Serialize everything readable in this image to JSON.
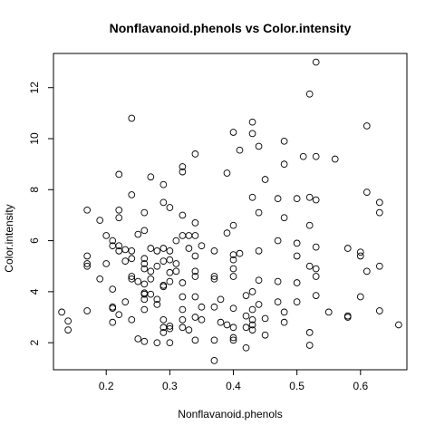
{
  "chart_data": {
    "type": "scatter",
    "title": "Nonflavanoid.phenols vs Color.intensity",
    "xlabel": "Nonflavanoid.phenols",
    "ylabel": "Color.intensity",
    "xlim": [
      0.117,
      0.673
    ],
    "ylim": [
      0.94,
      13.34
    ],
    "xticks": [
      0.2,
      0.3,
      0.4,
      0.5,
      0.6
    ],
    "xtick_labels": [
      "0.2",
      "0.3",
      "0.4",
      "0.5",
      "0.6"
    ],
    "yticks": [
      2,
      4,
      6,
      8,
      10,
      12
    ],
    "ytick_labels": [
      "2",
      "4",
      "6",
      "8",
      "10",
      "12"
    ],
    "grid": false,
    "legend": "none",
    "points": [
      [
        0.13,
        3.2
      ],
      [
        0.14,
        2.5
      ],
      [
        0.14,
        2.85
      ],
      [
        0.17,
        7.2
      ],
      [
        0.17,
        5.4
      ],
      [
        0.17,
        5.1
      ],
      [
        0.17,
        5.0
      ],
      [
        0.17,
        3.25
      ],
      [
        0.19,
        6.8
      ],
      [
        0.19,
        4.5
      ],
      [
        0.2,
        6.2
      ],
      [
        0.2,
        5.1
      ],
      [
        0.21,
        6.0
      ],
      [
        0.21,
        5.8
      ],
      [
        0.21,
        4.1
      ],
      [
        0.21,
        3.4
      ],
      [
        0.21,
        3.35
      ],
      [
        0.21,
        2.8
      ],
      [
        0.22,
        8.6
      ],
      [
        0.22,
        7.2
      ],
      [
        0.22,
        6.9
      ],
      [
        0.22,
        5.8
      ],
      [
        0.22,
        5.6
      ],
      [
        0.22,
        3.1
      ],
      [
        0.23,
        5.65
      ],
      [
        0.23,
        5.2
      ],
      [
        0.23,
        3.6
      ],
      [
        0.24,
        10.8
      ],
      [
        0.24,
        7.8
      ],
      [
        0.24,
        5.6
      ],
      [
        0.24,
        5.3
      ],
      [
        0.24,
        4.6
      ],
      [
        0.24,
        4.5
      ],
      [
        0.24,
        2.9
      ],
      [
        0.25,
        6.25
      ],
      [
        0.25,
        4.4
      ],
      [
        0.25,
        2.15
      ],
      [
        0.26,
        7.1
      ],
      [
        0.26,
        6.4
      ],
      [
        0.26,
        5.3
      ],
      [
        0.26,
        5.1
      ],
      [
        0.26,
        4.9
      ],
      [
        0.26,
        4.3
      ],
      [
        0.26,
        3.95
      ],
      [
        0.26,
        3.9
      ],
      [
        0.26,
        3.7
      ],
      [
        0.26,
        3.3
      ],
      [
        0.26,
        2.05
      ],
      [
        0.27,
        8.5
      ],
      [
        0.27,
        5.7
      ],
      [
        0.27,
        4.8
      ],
      [
        0.27,
        4.5
      ],
      [
        0.27,
        3.9
      ],
      [
        0.28,
        5.6
      ],
      [
        0.28,
        5.0
      ],
      [
        0.28,
        3.7
      ],
      [
        0.28,
        3.5
      ],
      [
        0.28,
        2.0
      ],
      [
        0.29,
        8.2
      ],
      [
        0.29,
        7.5
      ],
      [
        0.29,
        5.7
      ],
      [
        0.29,
        5.2
      ],
      [
        0.29,
        4.25
      ],
      [
        0.29,
        4.2
      ],
      [
        0.29,
        2.9
      ],
      [
        0.29,
        2.6
      ],
      [
        0.29,
        2.4
      ],
      [
        0.3,
        7.3
      ],
      [
        0.3,
        5.6
      ],
      [
        0.3,
        5.25
      ],
      [
        0.3,
        4.75
      ],
      [
        0.3,
        4.4
      ],
      [
        0.3,
        2.65
      ],
      [
        0.3,
        2.55
      ],
      [
        0.3,
        2.0
      ],
      [
        0.31,
        6.0
      ],
      [
        0.31,
        5.1
      ],
      [
        0.31,
        4.8
      ],
      [
        0.32,
        8.9
      ],
      [
        0.32,
        8.7
      ],
      [
        0.32,
        7.0
      ],
      [
        0.32,
        6.2
      ],
      [
        0.32,
        4.35
      ],
      [
        0.32,
        3.8
      ],
      [
        0.32,
        3.3
      ],
      [
        0.32,
        2.9
      ],
      [
        0.32,
        2.6
      ],
      [
        0.33,
        6.2
      ],
      [
        0.33,
        5.7
      ],
      [
        0.33,
        2.5
      ],
      [
        0.34,
        9.4
      ],
      [
        0.34,
        6.7
      ],
      [
        0.34,
        6.2
      ],
      [
        0.34,
        5.4
      ],
      [
        0.34,
        4.8
      ],
      [
        0.34,
        4.6
      ],
      [
        0.34,
        3.8
      ],
      [
        0.34,
        3.0
      ],
      [
        0.34,
        2.1
      ],
      [
        0.35,
        5.8
      ],
      [
        0.35,
        3.4
      ],
      [
        0.35,
        2.9
      ],
      [
        0.37,
        5.6
      ],
      [
        0.37,
        4.6
      ],
      [
        0.37,
        4.5
      ],
      [
        0.37,
        3.4
      ],
      [
        0.37,
        2.1
      ],
      [
        0.37,
        1.3
      ],
      [
        0.38,
        3.7
      ],
      [
        0.38,
        2.8
      ],
      [
        0.39,
        8.65
      ],
      [
        0.39,
        6.3
      ],
      [
        0.39,
        2.7
      ],
      [
        0.4,
        10.25
      ],
      [
        0.4,
        6.6
      ],
      [
        0.4,
        5.45
      ],
      [
        0.4,
        5.25
      ],
      [
        0.4,
        4.9
      ],
      [
        0.4,
        4.6
      ],
      [
        0.4,
        3.35
      ],
      [
        0.4,
        2.6
      ],
      [
        0.4,
        2.2
      ],
      [
        0.4,
        2.1
      ],
      [
        0.41,
        9.55
      ],
      [
        0.41,
        5.5
      ],
      [
        0.42,
        3.85
      ],
      [
        0.42,
        3.05
      ],
      [
        0.42,
        2.6
      ],
      [
        0.42,
        1.8
      ],
      [
        0.43,
        10.65
      ],
      [
        0.43,
        10.2
      ],
      [
        0.43,
        7.7
      ],
      [
        0.43,
        4.0
      ],
      [
        0.43,
        3.3
      ],
      [
        0.43,
        2.9
      ],
      [
        0.43,
        2.7
      ],
      [
        0.43,
        2.5
      ],
      [
        0.44,
        9.7
      ],
      [
        0.44,
        7.1
      ],
      [
        0.44,
        5.6
      ],
      [
        0.44,
        4.45
      ],
      [
        0.44,
        3.5
      ],
      [
        0.45,
        8.4
      ],
      [
        0.45,
        2.95
      ],
      [
        0.45,
        2.3
      ],
      [
        0.47,
        7.65
      ],
      [
        0.47,
        6.0
      ],
      [
        0.47,
        4.4
      ],
      [
        0.47,
        3.6
      ],
      [
        0.48,
        9.9
      ],
      [
        0.48,
        9.0
      ],
      [
        0.48,
        6.9
      ],
      [
        0.48,
        3.2
      ],
      [
        0.48,
        2.8
      ],
      [
        0.5,
        7.65
      ],
      [
        0.5,
        5.9
      ],
      [
        0.5,
        5.4
      ],
      [
        0.5,
        4.35
      ],
      [
        0.5,
        3.6
      ],
      [
        0.51,
        9.3
      ],
      [
        0.52,
        11.75
      ],
      [
        0.52,
        7.7
      ],
      [
        0.52,
        6.6
      ],
      [
        0.52,
        5.0
      ],
      [
        0.52,
        2.4
      ],
      [
        0.52,
        1.9
      ],
      [
        0.53,
        13.0
      ],
      [
        0.53,
        9.3
      ],
      [
        0.53,
        7.6
      ],
      [
        0.53,
        5.75
      ],
      [
        0.53,
        4.9
      ],
      [
        0.53,
        4.6
      ],
      [
        0.53,
        3.85
      ],
      [
        0.55,
        3.2
      ],
      [
        0.56,
        9.2
      ],
      [
        0.58,
        5.7
      ],
      [
        0.58,
        3.05
      ],
      [
        0.58,
        3.0
      ],
      [
        0.6,
        5.55
      ],
      [
        0.6,
        5.4
      ],
      [
        0.6,
        3.8
      ],
      [
        0.61,
        10.5
      ],
      [
        0.61,
        7.9
      ],
      [
        0.61,
        4.8
      ],
      [
        0.63,
        7.5
      ],
      [
        0.63,
        7.1
      ],
      [
        0.63,
        5.0
      ],
      [
        0.63,
        3.25
      ],
      [
        0.66,
        2.7
      ]
    ]
  }
}
